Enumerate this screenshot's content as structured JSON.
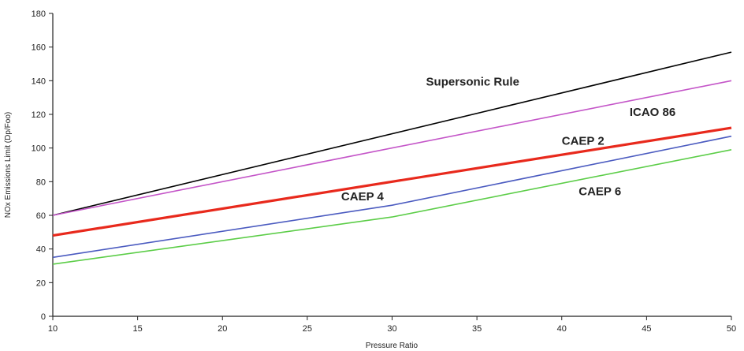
{
  "chart_data": {
    "type": "line",
    "xlabel": "Pressure Ratio",
    "ylabel": "NOx Emissions Limit (Dp/Foo)",
    "xlim": [
      10,
      50
    ],
    "ylim": [
      0,
      180
    ],
    "xticks": [
      10,
      15,
      20,
      25,
      30,
      35,
      40,
      45,
      50
    ],
    "yticks": [
      0,
      20,
      40,
      60,
      80,
      100,
      120,
      140,
      160,
      180
    ],
    "grid": false,
    "legend": "none",
    "series": [
      {
        "name": "Supersonic Rule",
        "color": "#000000",
        "width": 1.6,
        "x": [
          10,
          50
        ],
        "y": [
          60,
          157
        ],
        "label_at": [
          32,
          137
        ]
      },
      {
        "name": "ICAO 86",
        "color": "#c455c8",
        "width": 1.6,
        "x": [
          10,
          50
        ],
        "y": [
          60,
          140
        ],
        "label_at": [
          44,
          119
        ]
      },
      {
        "name": "CAEP 2",
        "color": "#e8291c",
        "width": 3.2,
        "x": [
          10,
          50
        ],
        "y": [
          48,
          112
        ],
        "label_at": [
          40,
          102
        ]
      },
      {
        "name": "CAEP 4",
        "color": "#4b5bc0",
        "width": 1.6,
        "x": [
          10,
          30,
          50
        ],
        "y": [
          35,
          66,
          107
        ],
        "label_at": [
          27,
          69
        ]
      },
      {
        "name": "CAEP 6",
        "color": "#5ccd48",
        "width": 1.6,
        "x": [
          10,
          30,
          50
        ],
        "y": [
          31,
          59,
          99
        ],
        "label_at": [
          41,
          72
        ]
      }
    ]
  }
}
